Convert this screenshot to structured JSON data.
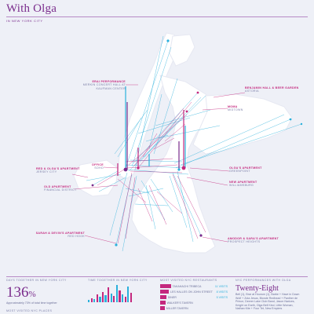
{
  "title": "With Olga",
  "subtitle": "IN NEW YORK CITY",
  "places": [
    {
      "name": "ERAI PERFORMANCE",
      "detail": "MERKIN CONCERT HALL AT KAUFMAN CENTER"
    },
    {
      "name": "BENJAMIN HALL & BEER GARDEN",
      "detail": "ASTORIA"
    },
    {
      "name": "MOMA",
      "detail": "MIDTOWN"
    },
    {
      "name": "OFFICE",
      "detail": "SOHO"
    },
    {
      "name": "OLGA'S APARTMENT",
      "detail": "GREENPOINT"
    },
    {
      "name": "RED & OLGA'S APARTMENT",
      "detail": "JERSEY CITY"
    },
    {
      "name": "NEW APARTMENT",
      "detail": "WILLIAMSBURG"
    },
    {
      "name": "OLD APARTMENT",
      "detail": "FINANCIAL DISTRICT"
    },
    {
      "name": "SARAH & DEVIN'S APARTMENT",
      "detail": "RED HOOK"
    },
    {
      "name": "AMODOR & SARA'S APARTMENT",
      "detail": "PROSPECT HEIGHTS"
    }
  ],
  "stats": {
    "days_heading": "DAYS TOGETHER IN NEW YORK CITY",
    "days_value": "136",
    "days_unit": "%",
    "days_note": "Approximately 73% of total time together",
    "places_heading": "MOST VISITED NYC PLACES",
    "time_heading": "TIME TOGETHER IN NEW YORK CITY",
    "time_bars": [
      3,
      5,
      4,
      9,
      6,
      12,
      8,
      17,
      10,
      7,
      20,
      14,
      9,
      6,
      18,
      11
    ],
    "restaurants_heading": "MOST VISITED NYC RESTAURANTS",
    "restaurants": [
      {
        "name": "TAKAHACHI TRIBECA",
        "count": "11 VISITS",
        "share": 0.62
      },
      {
        "name": "LES HALLES ON JOHN STREET",
        "count": "8 VISITS",
        "share": 0.5
      },
      {
        "name": "DINER",
        "count": "5 VISITS",
        "share": 0.35
      },
      {
        "name": "WALKER'S TAVERN",
        "count": "",
        "share": 0.3
      },
      {
        "name": "MILLER TAVERN",
        "count": "",
        "share": 0.26
      }
    ],
    "perf_heading": "NYC PERFORMANCES WITH OLGA",
    "perf_count": "Twenty-Eight",
    "perf_list": "Bell (1), Brar at Hourum (1), Barbe + Have in Down Wolf + Zola Jesus, Blonde Redhead + Panther de Prince, Deerer Lake Club Band, Jason Narices, Knight on Earth, Olga Bell Kind, Little Woman, Nathan Kite + Four Tet, New Empires"
  },
  "colors": {
    "purple": "#7a2c8c",
    "cyan": "#2bb0dc",
    "magenta": "#c4287e",
    "landmass": "#ffffff",
    "background": "#eef0f7"
  }
}
